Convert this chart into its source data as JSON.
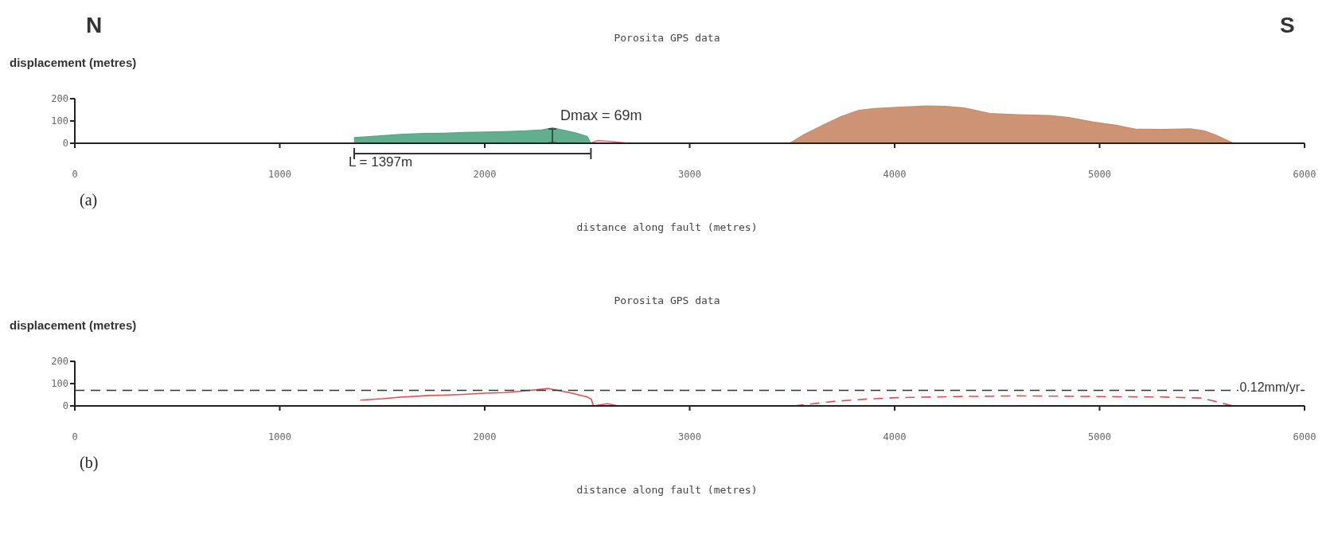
{
  "chart_data": [
    {
      "type": "area",
      "title": "Porosita GPS data",
      "xlabel": "distance along fault (metres)",
      "ylabel": "displacement (metres)",
      "xlim": [
        0,
        6000
      ],
      "xticks": [
        0,
        1000,
        2000,
        3000,
        4000,
        5000,
        6000
      ],
      "ylim": [
        0,
        200
      ],
      "yticks": [
        0,
        100,
        200
      ],
      "series": [
        {
          "color": "#5aaa88",
          "x": [
            1362,
            1450,
            1600,
            1700,
            1800,
            1900,
            2000,
            2100,
            2200,
            2280,
            2330,
            2400,
            2450,
            2500,
            2517
          ],
          "values": [
            25,
            30,
            40,
            44,
            45,
            48,
            50,
            52,
            55,
            60,
            69,
            55,
            45,
            30,
            0
          ]
        },
        {
          "color": "#c98e6e",
          "x": [
            3490,
            3560,
            3658,
            3740,
            3825,
            3900,
            4010,
            4155,
            4250,
            4340,
            4465,
            4600,
            4756,
            4850,
            4964,
            5080,
            5172,
            5300,
            5443,
            5510,
            5568,
            5651
          ],
          "values": [
            0,
            40,
            84,
            120,
            147,
            155,
            161,
            167,
            165,
            158,
            133,
            128,
            124,
            115,
            96,
            80,
            63,
            62,
            64,
            55,
            36,
            0
          ]
        },
        {
          "type": "line",
          "color": "#ee6688",
          "x": [
            2517,
            2550,
            2620,
            2700
          ],
          "values": [
            0,
            12,
            8,
            0
          ]
        }
      ],
      "annotations": [
        "N",
        "S",
        "(a)",
        "L = 1397m",
        {
          "text": "Dmax = 69m",
          "x": 2330,
          "y": 69
        }
      ]
    },
    {
      "type": "line",
      "title": "Porosita GPS data",
      "xlabel": "distance along fault (metres)",
      "ylabel": "displacement (metres)",
      "xlim": [
        0,
        6000
      ],
      "xticks": [
        0,
        1000,
        2000,
        3000,
        4000,
        5000,
        6000
      ],
      "ylim": [
        0,
        200
      ],
      "yticks": [
        0,
        100,
        200
      ],
      "ref_lines": [
        {
          "axis": "y",
          "value": 70,
          "label": "0.12mm/yr",
          "color": "#333333",
          "line_style": "dashed"
        }
      ],
      "series": [
        {
          "color": "#e05050",
          "line_style": "solid",
          "x": [
            1393,
            1500,
            1600,
            1716,
            1800,
            1900,
            2000,
            2100,
            2200,
            2312,
            2416,
            2500,
            2520,
            2530,
            2600,
            2650
          ],
          "values": [
            26,
            32,
            40,
            46,
            48,
            52,
            57,
            60,
            68,
            78,
            59,
            40,
            30,
            0,
            10,
            0
          ]
        },
        {
          "color": "#e05050",
          "line_style": "dashed",
          "x": [
            3510,
            3700,
            3850,
            4010,
            4300,
            4600,
            5000,
            5300,
            5500,
            5650
          ],
          "values": [
            0,
            20,
            30,
            37,
            42,
            45,
            42,
            40,
            35,
            0
          ]
        }
      ],
      "annotations": [
        "(b)"
      ]
    }
  ]
}
